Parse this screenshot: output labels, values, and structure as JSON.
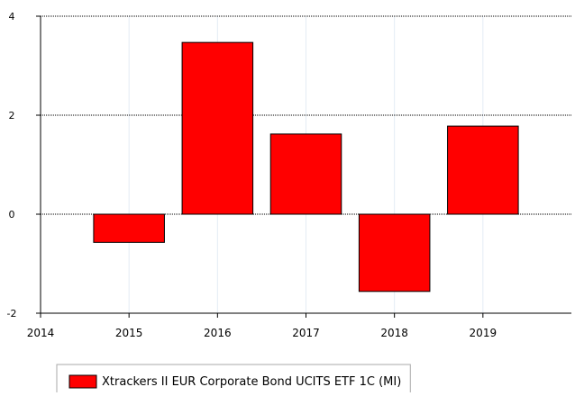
{
  "chart_data": {
    "type": "bar",
    "x": [
      2015,
      2016,
      2017,
      2018,
      2019
    ],
    "series": [
      {
        "name": "Xtrackers II EUR Corporate Bond UCITS ETF 1C (MI)",
        "color": "#ff0000",
        "values": [
          -0.57,
          3.47,
          1.62,
          -1.56,
          1.78
        ]
      }
    ],
    "xlim": [
      2014,
      2020
    ],
    "xticks": [
      2014,
      2015,
      2016,
      2017,
      2018,
      2019
    ],
    "ylim": [
      -2,
      4
    ],
    "yticks": [
      -2,
      0,
      2,
      4
    ],
    "grid": true,
    "legend": "bottom"
  }
}
